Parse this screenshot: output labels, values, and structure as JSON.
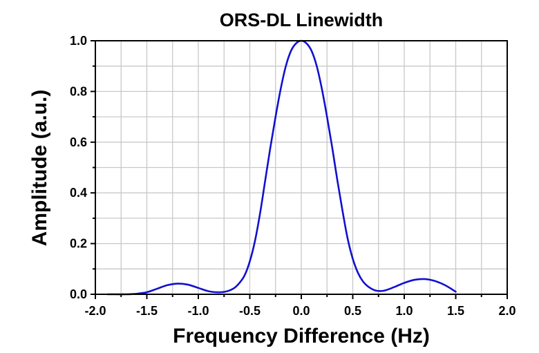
{
  "chart_data": {
    "type": "line",
    "title": "ORS-DL Linewidth",
    "xlabel": "Frequency Difference (Hz)",
    "ylabel": "Amplitude (a.u.)",
    "xlim": [
      -2.0,
      2.0
    ],
    "ylim": [
      0.0,
      1.0
    ],
    "xticks": [
      -2.0,
      -1.5,
      -1.0,
      -0.5,
      0.0,
      0.5,
      1.0,
      1.5,
      2.0
    ],
    "xtick_labels": [
      "-2.0",
      "-1.5",
      "-1.0",
      "-0.5",
      "0.0",
      "0.5",
      "1.0",
      "1.5",
      "2.0"
    ],
    "yticks": [
      0.0,
      0.2,
      0.4,
      0.6,
      0.8,
      1.0
    ],
    "ytick_labels": [
      "0.0",
      "0.2",
      "0.4",
      "0.6",
      "0.8",
      "1.0"
    ],
    "grid": true,
    "line_color": "#1010d0",
    "series": [
      {
        "x": [
          -1.88,
          -1.8,
          -1.7,
          -1.6,
          -1.5,
          -1.4,
          -1.3,
          -1.2,
          -1.1,
          -1.0,
          -0.9,
          -0.8,
          -0.72,
          -0.65,
          -0.6,
          -0.55,
          -0.5,
          -0.45,
          -0.4,
          -0.35,
          -0.3,
          -0.25,
          -0.2,
          -0.15,
          -0.1,
          -0.05,
          0.0,
          0.05,
          0.1,
          0.15,
          0.2,
          0.25,
          0.3,
          0.35,
          0.4,
          0.45,
          0.5,
          0.55,
          0.6,
          0.65,
          0.72,
          0.8,
          0.9,
          1.0,
          1.1,
          1.2,
          1.3,
          1.4,
          1.5
        ],
        "y": [
          0.0,
          0.0,
          0.0,
          0.002,
          0.008,
          0.022,
          0.036,
          0.042,
          0.038,
          0.025,
          0.012,
          0.008,
          0.012,
          0.025,
          0.045,
          0.075,
          0.13,
          0.21,
          0.32,
          0.45,
          0.58,
          0.7,
          0.81,
          0.9,
          0.96,
          0.99,
          1.0,
          0.99,
          0.96,
          0.9,
          0.81,
          0.7,
          0.58,
          0.45,
          0.33,
          0.22,
          0.14,
          0.085,
          0.05,
          0.03,
          0.015,
          0.014,
          0.028,
          0.045,
          0.057,
          0.06,
          0.052,
          0.035,
          0.01
        ]
      }
    ]
  }
}
